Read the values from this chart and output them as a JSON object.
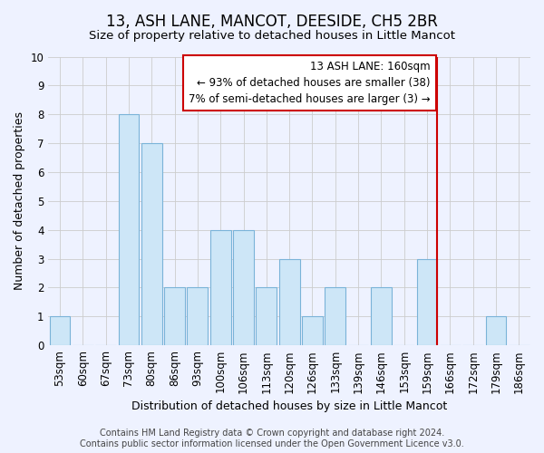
{
  "title": "13, ASH LANE, MANCOT, DEESIDE, CH5 2BR",
  "subtitle": "Size of property relative to detached houses in Little Mancot",
  "xlabel": "Distribution of detached houses by size in Little Mancot",
  "ylabel": "Number of detached properties",
  "footer_line1": "Contains HM Land Registry data © Crown copyright and database right 2024.",
  "footer_line2": "Contains public sector information licensed under the Open Government Licence v3.0.",
  "categories": [
    "53sqm",
    "60sqm",
    "67sqm",
    "73sqm",
    "80sqm",
    "86sqm",
    "93sqm",
    "100sqm",
    "106sqm",
    "113sqm",
    "120sqm",
    "126sqm",
    "133sqm",
    "139sqm",
    "146sqm",
    "153sqm",
    "159sqm",
    "166sqm",
    "172sqm",
    "179sqm",
    "186sqm"
  ],
  "values": [
    1,
    0,
    0,
    8,
    7,
    2,
    2,
    4,
    4,
    2,
    3,
    1,
    2,
    0,
    2,
    0,
    3,
    0,
    0,
    1,
    0
  ],
  "bar_color": "#cde6f7",
  "bar_edge_color": "#7ab3d8",
  "grid_color": "#cccccc",
  "annotation_line1": "13 ASH LANE: 160sqm",
  "annotation_line2": "← 93% of detached houses are smaller (38)",
  "annotation_line3": "7% of semi-detached houses are larger (3) →",
  "vline_color": "#cc0000",
  "vline_x_index": 16,
  "ylim": [
    0,
    10
  ],
  "yticks": [
    0,
    1,
    2,
    3,
    4,
    5,
    6,
    7,
    8,
    9,
    10
  ],
  "background_color": "#eef2ff",
  "plot_background": "#eef2ff",
  "title_fontsize": 12,
  "subtitle_fontsize": 9.5,
  "axis_label_fontsize": 9,
  "tick_fontsize": 8.5,
  "annotation_fontsize": 8.5,
  "footer_fontsize": 7
}
